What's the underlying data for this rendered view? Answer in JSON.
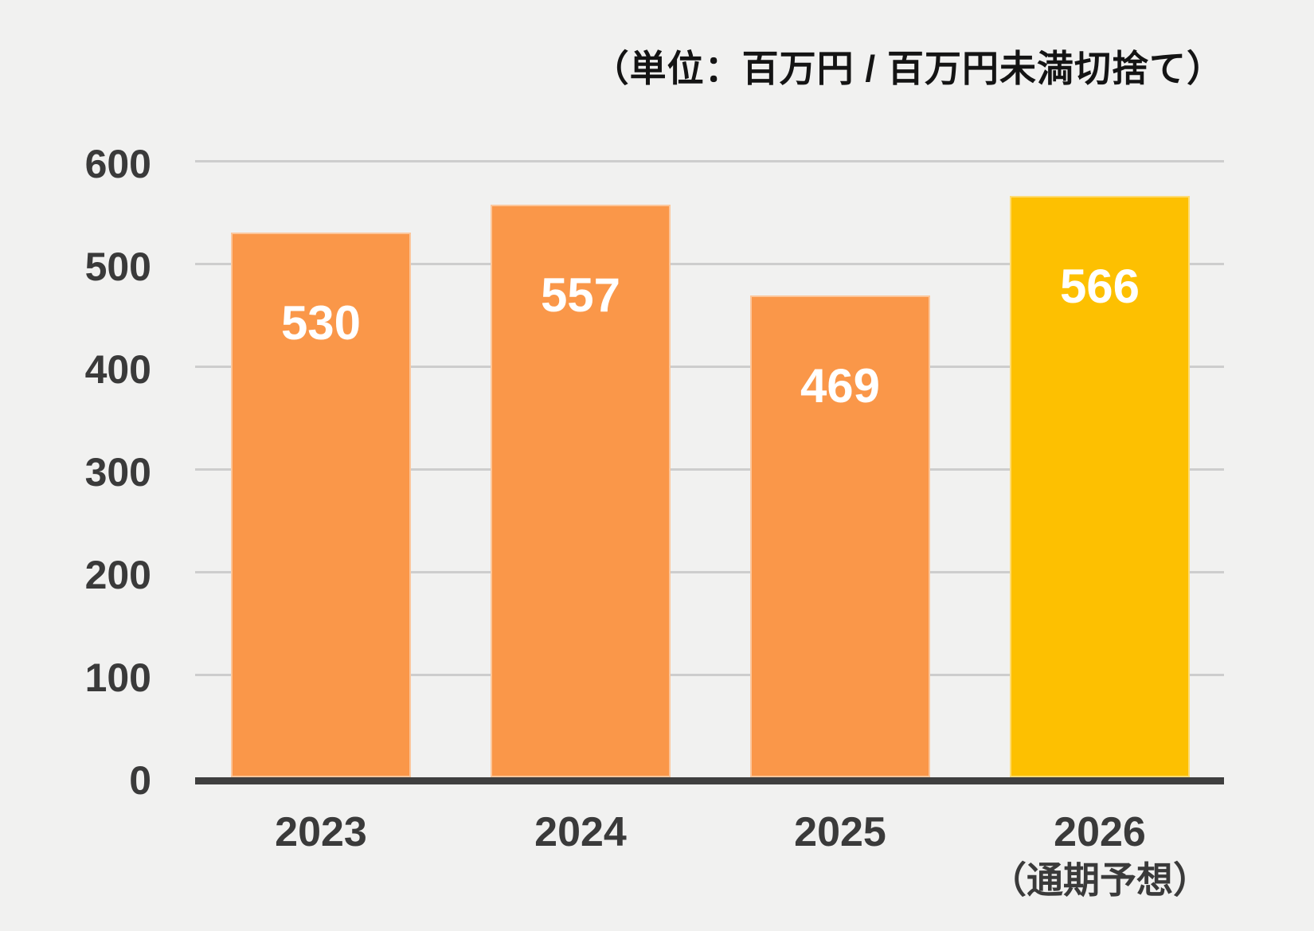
{
  "unit_note": "（単位：百万円 / 百万円未満切捨て）",
  "colors": {
    "background": "#F1F1F0",
    "bar_default": "#FA9749",
    "bar_highlight": "#FDC001",
    "axis_line": "#3F3F3F",
    "gridline": "#CDCDCD",
    "tick_text": "#3A3A3A",
    "value_text": "#FFFFFF"
  },
  "chart_data": {
    "type": "bar",
    "title": "",
    "unit_note": "（単位：百万円 / 百万円未満切捨て）",
    "categories": [
      "2023",
      "2024",
      "2025",
      "2026"
    ],
    "category_sublabels": [
      "",
      "",
      "",
      "（通期予想）"
    ],
    "values": [
      530,
      557,
      469,
      566
    ],
    "value_labels": [
      "530",
      "557",
      "469",
      "566"
    ],
    "bar_colors": [
      "#FA9749",
      "#FA9749",
      "#FA9749",
      "#FDC001"
    ],
    "highlight_index": 3,
    "ylabel": "",
    "xlabel": "",
    "ylim": [
      0,
      600
    ],
    "yticks": [
      0,
      100,
      200,
      300,
      400,
      500,
      600
    ],
    "grid": true,
    "legend_position": "none"
  }
}
